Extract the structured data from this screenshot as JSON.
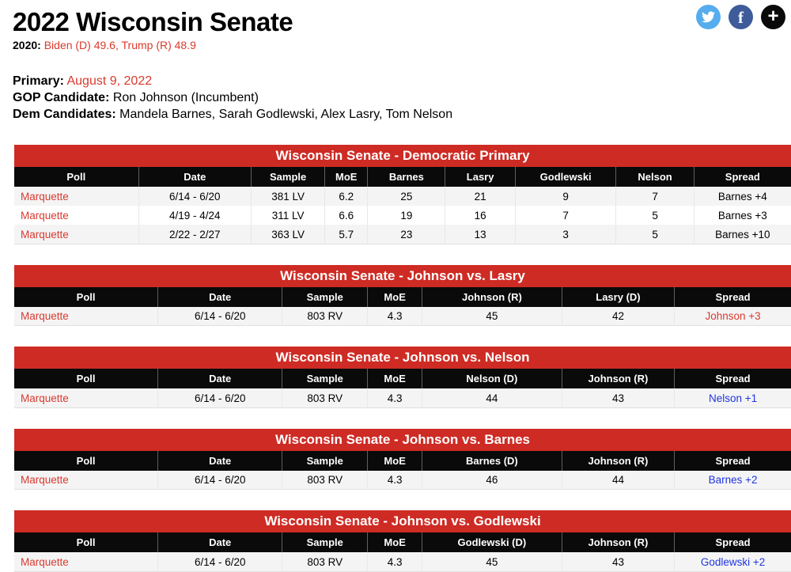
{
  "header": {
    "title": "2022 Wisconsin Senate",
    "year_label": "2020:",
    "year_value": "Biden (D) 49.6, Trump (R) 48.9",
    "info": {
      "primary_label": "Primary:",
      "primary_value": "August 9, 2022",
      "gop_label": "GOP Candidate:",
      "gop_value": "Ron Johnson (Incumbent)",
      "dem_label": "Dem Candidates:",
      "dem_value": "Mandela Barnes, Sarah Godlewski, Alex Lasry, Tom Nelson"
    }
  },
  "social": {
    "twitter": {
      "icon": "twitter-bird",
      "color": "#55acee"
    },
    "facebook": {
      "icon": "facebook-f",
      "color": "#3e5c9a",
      "glyph": "f"
    },
    "share_more": {
      "icon": "plus",
      "color": "#0a0a0a",
      "glyph": "+"
    }
  },
  "colors": {
    "bar_red": "#ce2b24",
    "text_red": "#d93a2e",
    "spread_blue": "#1f35e0",
    "header_black": "#0a0a0a",
    "row_stripe": "#f4f4f5"
  },
  "tables": [
    {
      "title": "Wisconsin Senate - Democratic Primary",
      "columns": [
        "Poll",
        "Date",
        "Sample",
        "MoE",
        "Barnes",
        "Lasry",
        "Godlewski",
        "Nelson",
        "Spread"
      ],
      "rows": [
        {
          "cells": [
            "Marquette",
            "6/14 - 6/20",
            "381 LV",
            "6.2",
            "25",
            "21",
            "9",
            "7",
            "Barnes +4"
          ],
          "spread_color": "black"
        },
        {
          "cells": [
            "Marquette",
            "4/19 - 4/24",
            "311 LV",
            "6.6",
            "19",
            "16",
            "7",
            "5",
            "Barnes +3"
          ],
          "spread_color": "black"
        },
        {
          "cells": [
            "Marquette",
            "2/22 - 2/27",
            "363 LV",
            "5.7",
            "23",
            "13",
            "3",
            "5",
            "Barnes +10"
          ],
          "spread_color": "black"
        }
      ]
    },
    {
      "title": "Wisconsin Senate - Johnson vs. Lasry",
      "columns": [
        "Poll",
        "Date",
        "Sample",
        "MoE",
        "Johnson (R)",
        "Lasry (D)",
        "Spread"
      ],
      "rows": [
        {
          "cells": [
            "Marquette",
            "6/14 - 6/20",
            "803 RV",
            "4.3",
            "45",
            "42",
            "Johnson +3"
          ],
          "spread_color": "red"
        }
      ]
    },
    {
      "title": "Wisconsin Senate - Johnson vs. Nelson",
      "columns": [
        "Poll",
        "Date",
        "Sample",
        "MoE",
        "Nelson (D)",
        "Johnson (R)",
        "Spread"
      ],
      "rows": [
        {
          "cells": [
            "Marquette",
            "6/14 - 6/20",
            "803 RV",
            "4.3",
            "44",
            "43",
            "Nelson +1"
          ],
          "spread_color": "blue"
        }
      ]
    },
    {
      "title": "Wisconsin Senate - Johnson vs. Barnes",
      "columns": [
        "Poll",
        "Date",
        "Sample",
        "MoE",
        "Barnes (D)",
        "Johnson (R)",
        "Spread"
      ],
      "rows": [
        {
          "cells": [
            "Marquette",
            "6/14 - 6/20",
            "803 RV",
            "4.3",
            "46",
            "44",
            "Barnes +2"
          ],
          "spread_color": "blue"
        }
      ]
    },
    {
      "title": "Wisconsin Senate - Johnson vs. Godlewski",
      "columns": [
        "Poll",
        "Date",
        "Sample",
        "MoE",
        "Godlewski (D)",
        "Johnson (R)",
        "Spread"
      ],
      "rows": [
        {
          "cells": [
            "Marquette",
            "6/14 - 6/20",
            "803 RV",
            "4.3",
            "45",
            "43",
            "Godlewski +2"
          ],
          "spread_color": "blue"
        }
      ]
    }
  ]
}
